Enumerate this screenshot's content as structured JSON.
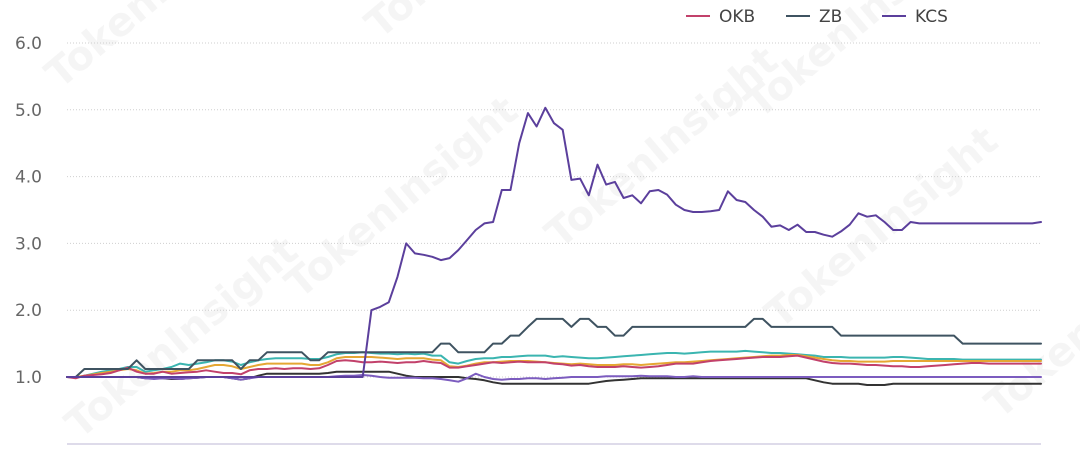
{
  "chart_data": {
    "type": "line",
    "title": "",
    "xlabel": "",
    "ylabel": "",
    "ylim": [
      0,
      6.0
    ],
    "yticks": [
      "1.0",
      "2.0",
      "3.0",
      "4.0",
      "5.0",
      "6.0"
    ],
    "grid": true,
    "legend_position": "top-right",
    "x": [
      1,
      2,
      3,
      4,
      5,
      6,
      7,
      8,
      9,
      10,
      11,
      12,
      13,
      14,
      15,
      16,
      17,
      18,
      19,
      20,
      21,
      22,
      23,
      24,
      25,
      26,
      27,
      28,
      29,
      30,
      31,
      32,
      33,
      34,
      35,
      36,
      37,
      38,
      39,
      40,
      41,
      42,
      43,
      44,
      45,
      46,
      47,
      48,
      49,
      50,
      51,
      52,
      53,
      54,
      55,
      56,
      57,
      58,
      59,
      60,
      61,
      62,
      63,
      64,
      65,
      66,
      67,
      68,
      69,
      70,
      71,
      72,
      73,
      74,
      75,
      76,
      77,
      78,
      79,
      80,
      81,
      82,
      83,
      84,
      85,
      86,
      87,
      88,
      89,
      90,
      91,
      92,
      93,
      94,
      95,
      96,
      97,
      98,
      99,
      100,
      101,
      102,
      103,
      104,
      105,
      106,
      107,
      108,
      109,
      110,
      111,
      112,
      113
    ],
    "series": [
      {
        "name": "OKB",
        "color": "#c2416b",
        "values": [
          1.0,
          0.98,
          1.02,
          1.03,
          1.04,
          1.06,
          1.1,
          1.14,
          1.08,
          1.05,
          1.05,
          1.08,
          1.05,
          1.06,
          1.07,
          1.08,
          1.1,
          1.08,
          1.06,
          1.06,
          1.04,
          1.1,
          1.12,
          1.12,
          1.13,
          1.12,
          1.13,
          1.13,
          1.12,
          1.13,
          1.18,
          1.24,
          1.25,
          1.24,
          1.22,
          1.22,
          1.23,
          1.22,
          1.21,
          1.22,
          1.22,
          1.24,
          1.22,
          1.21,
          1.14,
          1.14,
          1.16,
          1.18,
          1.2,
          1.22,
          1.21,
          1.22,
          1.23,
          1.22,
          1.22,
          1.22,
          1.2,
          1.19,
          1.17,
          1.18,
          1.16,
          1.15,
          1.15,
          1.15,
          1.16,
          1.15,
          1.14,
          1.15,
          1.16,
          1.18,
          1.2,
          1.2,
          1.2,
          1.22,
          1.24,
          1.25,
          1.26,
          1.27,
          1.28,
          1.29,
          1.3,
          1.3,
          1.3,
          1.31,
          1.32,
          1.29,
          1.26,
          1.23,
          1.21,
          1.2,
          1.2,
          1.19,
          1.18,
          1.18,
          1.17,
          1.16,
          1.16,
          1.15,
          1.15,
          1.16,
          1.17,
          1.18,
          1.19,
          1.2,
          1.21,
          1.21,
          1.2,
          1.2,
          1.2,
          1.2,
          1.2,
          1.2,
          1.2
        ]
      },
      {
        "name": "ZB",
        "color": "#3f5361",
        "values": [
          1.0,
          1.0,
          1.12,
          1.12,
          1.12,
          1.12,
          1.12,
          1.12,
          1.25,
          1.12,
          1.12,
          1.12,
          1.12,
          1.12,
          1.12,
          1.25,
          1.25,
          1.25,
          1.25,
          1.25,
          1.12,
          1.25,
          1.25,
          1.37,
          1.37,
          1.37,
          1.37,
          1.37,
          1.25,
          1.25,
          1.37,
          1.37,
          1.37,
          1.37,
          1.37,
          1.37,
          1.37,
          1.37,
          1.37,
          1.37,
          1.37,
          1.37,
          1.37,
          1.5,
          1.5,
          1.37,
          1.37,
          1.37,
          1.37,
          1.5,
          1.5,
          1.62,
          1.62,
          1.75,
          1.87,
          1.87,
          1.87,
          1.87,
          1.75,
          1.87,
          1.87,
          1.75,
          1.75,
          1.62,
          1.62,
          1.75,
          1.75,
          1.75,
          1.75,
          1.75,
          1.75,
          1.75,
          1.75,
          1.75,
          1.75,
          1.75,
          1.75,
          1.75,
          1.75,
          1.87,
          1.87,
          1.75,
          1.75,
          1.75,
          1.75,
          1.75,
          1.75,
          1.75,
          1.75,
          1.62,
          1.62,
          1.62,
          1.62,
          1.62,
          1.62,
          1.62,
          1.62,
          1.62,
          1.62,
          1.62,
          1.62,
          1.62,
          1.62,
          1.5,
          1.5,
          1.5,
          1.5,
          1.5,
          1.5,
          1.5,
          1.5,
          1.5,
          1.5
        ]
      },
      {
        "name": "KCS",
        "color": "#5b3f9c",
        "values": [
          1.0,
          1.0,
          1.0,
          1.0,
          1.0,
          1.0,
          1.0,
          1.0,
          1.0,
          1.0,
          1.0,
          1.0,
          1.0,
          1.0,
          1.0,
          1.0,
          1.0,
          1.0,
          1.0,
          1.0,
          1.0,
          1.0,
          1.0,
          1.0,
          1.0,
          1.0,
          1.0,
          1.0,
          1.0,
          1.0,
          1.0,
          1.0,
          1.0,
          1.0,
          1.0,
          2.0,
          2.05,
          2.12,
          2.5,
          3.0,
          2.85,
          2.83,
          2.8,
          2.75,
          2.78,
          2.9,
          3.05,
          3.2,
          3.3,
          3.32,
          3.8,
          3.8,
          4.5,
          4.95,
          4.75,
          5.03,
          4.8,
          4.7,
          3.95,
          3.97,
          3.72,
          4.18,
          3.88,
          3.92,
          3.68,
          3.72,
          3.6,
          3.78,
          3.8,
          3.73,
          3.58,
          3.5,
          3.47,
          3.47,
          3.48,
          3.5,
          3.78,
          3.65,
          3.62,
          3.5,
          3.4,
          3.25,
          3.27,
          3.2,
          3.28,
          3.17,
          3.17,
          3.13,
          3.1,
          3.18,
          3.28,
          3.45,
          3.4,
          3.42,
          3.32,
          3.2,
          3.2,
          3.32,
          3.3,
          3.3,
          3.3,
          3.3,
          3.3,
          3.3,
          3.3,
          3.3,
          3.3,
          3.3,
          3.3,
          3.3,
          3.3,
          3.3,
          3.32
        ]
      },
      {
        "name": "",
        "color": "#3bb5b0",
        "values": [
          1.0,
          0.99,
          1.02,
          1.05,
          1.08,
          1.1,
          1.12,
          1.15,
          1.15,
          1.08,
          1.1,
          1.12,
          1.15,
          1.2,
          1.18,
          1.2,
          1.22,
          1.25,
          1.25,
          1.23,
          1.18,
          1.22,
          1.25,
          1.27,
          1.28,
          1.28,
          1.28,
          1.28,
          1.27,
          1.27,
          1.3,
          1.34,
          1.36,
          1.36,
          1.37,
          1.36,
          1.35,
          1.35,
          1.34,
          1.35,
          1.34,
          1.35,
          1.32,
          1.32,
          1.22,
          1.2,
          1.24,
          1.27,
          1.28,
          1.28,
          1.3,
          1.3,
          1.31,
          1.32,
          1.32,
          1.32,
          1.3,
          1.31,
          1.3,
          1.29,
          1.28,
          1.28,
          1.29,
          1.3,
          1.31,
          1.32,
          1.33,
          1.34,
          1.35,
          1.36,
          1.36,
          1.35,
          1.36,
          1.37,
          1.38,
          1.38,
          1.38,
          1.38,
          1.39,
          1.38,
          1.37,
          1.36,
          1.36,
          1.35,
          1.34,
          1.33,
          1.32,
          1.3,
          1.3,
          1.3,
          1.29,
          1.29,
          1.29,
          1.29,
          1.29,
          1.3,
          1.3,
          1.29,
          1.28,
          1.27,
          1.27,
          1.27,
          1.27,
          1.26,
          1.26,
          1.26,
          1.26,
          1.26,
          1.26,
          1.26,
          1.26,
          1.26,
          1.26
        ]
      },
      {
        "name": "",
        "color": "#e5a733",
        "values": [
          1.0,
          1.0,
          1.02,
          1.04,
          1.06,
          1.08,
          1.1,
          1.12,
          1.1,
          1.05,
          1.06,
          1.08,
          1.08,
          1.1,
          1.1,
          1.12,
          1.15,
          1.18,
          1.18,
          1.16,
          1.12,
          1.15,
          1.18,
          1.2,
          1.2,
          1.2,
          1.2,
          1.2,
          1.18,
          1.18,
          1.22,
          1.28,
          1.3,
          1.3,
          1.3,
          1.3,
          1.29,
          1.28,
          1.27,
          1.28,
          1.28,
          1.28,
          1.26,
          1.25,
          1.16,
          1.15,
          1.17,
          1.2,
          1.22,
          1.22,
          1.23,
          1.24,
          1.24,
          1.24,
          1.23,
          1.22,
          1.21,
          1.2,
          1.19,
          1.2,
          1.19,
          1.18,
          1.18,
          1.18,
          1.19,
          1.19,
          1.18,
          1.19,
          1.2,
          1.21,
          1.22,
          1.22,
          1.23,
          1.24,
          1.25,
          1.26,
          1.27,
          1.28,
          1.29,
          1.3,
          1.31,
          1.32,
          1.32,
          1.33,
          1.33,
          1.31,
          1.29,
          1.27,
          1.25,
          1.24,
          1.24,
          1.23,
          1.23,
          1.23,
          1.23,
          1.24,
          1.24,
          1.24,
          1.24,
          1.24,
          1.24,
          1.24,
          1.24,
          1.24,
          1.24,
          1.24,
          1.24,
          1.24,
          1.24,
          1.24,
          1.24,
          1.24,
          1.24
        ]
      },
      {
        "name": "",
        "color": "#333333",
        "values": [
          1.0,
          1.0,
          1.0,
          1.0,
          1.0,
          1.0,
          1.0,
          1.0,
          1.0,
          0.98,
          0.98,
          0.98,
          0.97,
          0.97,
          0.98,
          0.99,
          1.0,
          1.0,
          1.0,
          0.98,
          0.96,
          0.98,
          1.02,
          1.05,
          1.05,
          1.05,
          1.05,
          1.05,
          1.05,
          1.05,
          1.06,
          1.08,
          1.08,
          1.08,
          1.08,
          1.08,
          1.08,
          1.08,
          1.05,
          1.02,
          1.0,
          1.0,
          1.0,
          1.0,
          1.0,
          1.0,
          0.98,
          0.97,
          0.95,
          0.92,
          0.9,
          0.9,
          0.9,
          0.9,
          0.9,
          0.9,
          0.9,
          0.9,
          0.9,
          0.9,
          0.9,
          0.92,
          0.94,
          0.95,
          0.96,
          0.97,
          0.98,
          0.98,
          0.98,
          0.98,
          0.98,
          0.98,
          0.98,
          0.98,
          0.98,
          0.98,
          0.98,
          0.98,
          0.98,
          0.98,
          0.98,
          0.98,
          0.98,
          0.98,
          0.98,
          0.98,
          0.95,
          0.92,
          0.9,
          0.9,
          0.9,
          0.9,
          0.88,
          0.88,
          0.88,
          0.9,
          0.9,
          0.9,
          0.9,
          0.9,
          0.9,
          0.9,
          0.9,
          0.9,
          0.9,
          0.9,
          0.9,
          0.9,
          0.9,
          0.9,
          0.9,
          0.9,
          0.9
        ]
      },
      {
        "name": "",
        "color": "#7c5cbf",
        "values": [
          1.0,
          1.0,
          1.0,
          1.0,
          1.0,
          1.0,
          1.0,
          1.0,
          1.0,
          0.98,
          0.97,
          0.98,
          0.98,
          0.97,
          0.98,
          0.99,
          1.0,
          1.0,
          1.0,
          0.98,
          0.96,
          0.98,
          1.0,
          1.0,
          1.0,
          1.0,
          1.0,
          1.0,
          1.0,
          1.0,
          1.0,
          1.01,
          1.02,
          1.02,
          1.03,
          1.02,
          1.0,
          0.99,
          0.99,
          0.99,
          0.99,
          0.98,
          0.98,
          0.97,
          0.95,
          0.93,
          0.98,
          1.05,
          1.0,
          0.97,
          0.96,
          0.97,
          0.97,
          0.98,
          0.98,
          0.97,
          0.98,
          0.99,
          1.0,
          1.0,
          1.0,
          1.0,
          1.01,
          1.01,
          1.01,
          1.01,
          1.02,
          1.01,
          1.01,
          1.01,
          1.0,
          1.0,
          1.01,
          1.0,
          1.0,
          1.0,
          1.0,
          1.0,
          1.0,
          1.0,
          1.0,
          1.0,
          1.0,
          1.0,
          1.0,
          1.0,
          1.0,
          1.0,
          1.0,
          1.0,
          1.0,
          1.0,
          1.0,
          1.0,
          1.0,
          1.0,
          1.0,
          1.0,
          1.0,
          1.0,
          1.0,
          1.0,
          1.0,
          1.0,
          1.0,
          1.0,
          1.0,
          1.0,
          1.0,
          1.0,
          1.0,
          1.0,
          1.0
        ]
      }
    ]
  },
  "watermark": {
    "text": "TokenInsight"
  }
}
